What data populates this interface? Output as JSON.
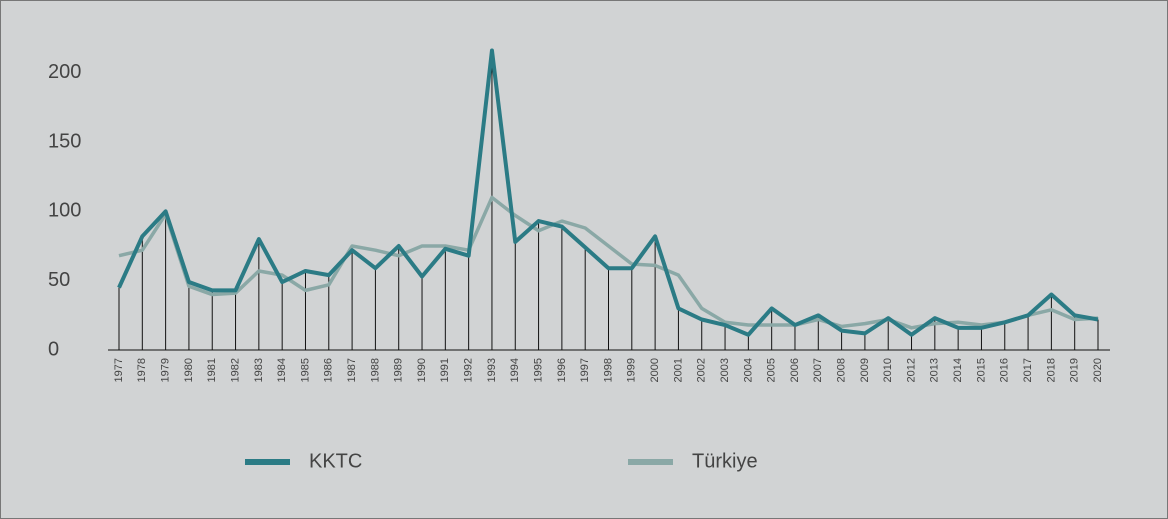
{
  "chart_data": {
    "type": "line",
    "categories": [
      "1977",
      "1978",
      "1979",
      "1980",
      "1981",
      "1982",
      "1983",
      "1984",
      "1985",
      "1986",
      "1987",
      "1988",
      "1989",
      "1990",
      "1991",
      "1992",
      "1993",
      "1994",
      "1995",
      "1996",
      "1997",
      "1998",
      "1999",
      "2000",
      "2001",
      "2002",
      "2003",
      "2004",
      "2005",
      "2006",
      "2007",
      "2008",
      "2009",
      "2010",
      "2012",
      "2013",
      "2014",
      "2015",
      "2016",
      "2017",
      "2018",
      "2019",
      "2020"
    ],
    "series": [
      {
        "name": "KKTC",
        "color": "#2b7b85",
        "values": [
          45,
          82,
          100,
          49,
          43,
          43,
          80,
          49,
          57,
          54,
          72,
          59,
          75,
          53,
          73,
          68,
          216,
          78,
          93,
          89,
          74,
          59,
          59,
          82,
          30,
          22,
          18,
          11,
          30,
          18,
          25,
          14,
          12,
          23,
          11,
          23,
          16,
          16,
          20,
          25,
          40,
          25,
          22
        ]
      },
      {
        "name": "Türkiye",
        "color": "#8aa8a6",
        "values": [
          68,
          72,
          98,
          46,
          40,
          41,
          57,
          54,
          43,
          47,
          75,
          72,
          68,
          75,
          75,
          72,
          110,
          97,
          86,
          93,
          88,
          75,
          62,
          61,
          54,
          30,
          20,
          18,
          18,
          18,
          22,
          17,
          19,
          22,
          16,
          19,
          20,
          18,
          20,
          25,
          29,
          22,
          23
        ]
      }
    ],
    "ylim": [
      0,
      220
    ],
    "yticks": [
      0,
      50,
      100,
      150,
      200
    ],
    "drop_lines": true
  }
}
